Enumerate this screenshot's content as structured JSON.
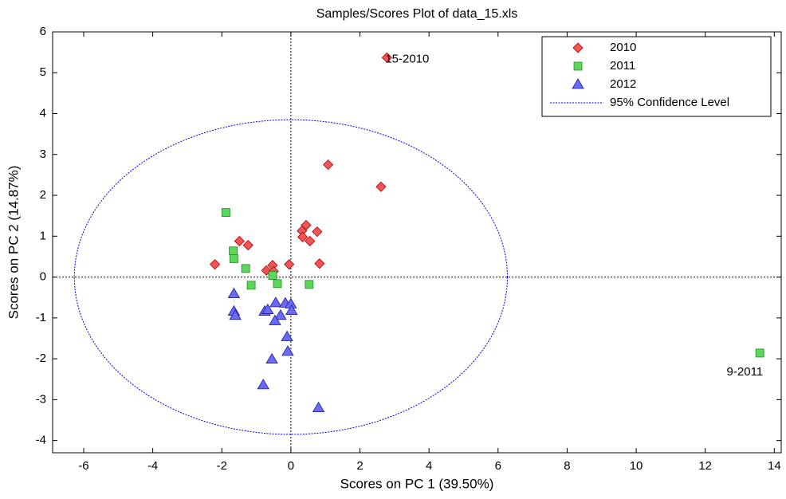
{
  "chart_data": {
    "type": "scatter",
    "title": "Samples/Scores Plot of data_15.xls",
    "x_label": "Scores on PC 1 (39.50%)",
    "y_label": "Scores on PC 2 (14.87%)",
    "xlim": [
      -6.9,
      14.2
    ],
    "ylim": [
      -4.3,
      6
    ],
    "xticks": [
      -6,
      -4,
      -2,
      0,
      2,
      4,
      6,
      8,
      10,
      12,
      14
    ],
    "yticks": [
      -4,
      -3,
      -2,
      -1,
      0,
      1,
      2,
      3,
      4,
      5,
      6
    ],
    "zero_lines": true,
    "legend": "upper right",
    "series": [
      {
        "name": "2010",
        "color": "#f25555",
        "marker": "diamond",
        "x": [
          2.78,
          1.08,
          2.61,
          0.44,
          0.32,
          0.34,
          0.55,
          0.76,
          0.83,
          -1.49,
          -1.24,
          -2.2,
          -0.53,
          -0.71,
          -0.5,
          -0.05
        ],
        "y": [
          5.37,
          2.75,
          2.21,
          1.27,
          1.13,
          0.98,
          0.88,
          1.11,
          0.33,
          0.88,
          0.78,
          0.31,
          0.29,
          0.16,
          0.14,
          0.31
        ]
      },
      {
        "name": "2011",
        "color": "#5cd65c",
        "marker": "square",
        "x": [
          -1.88,
          -1.67,
          -1.65,
          -1.31,
          -1.15,
          -0.53,
          -0.39,
          0.53,
          13.58
        ],
        "y": [
          1.58,
          0.64,
          0.45,
          0.21,
          -0.2,
          0.04,
          -0.16,
          -0.18,
          -1.86
        ]
      },
      {
        "name": "2012",
        "color": "#6a6af2",
        "marker": "triangle",
        "x": [
          -1.65,
          -1.65,
          -1.61,
          -0.76,
          -0.67,
          -0.44,
          -0.16,
          0,
          0.02,
          -0.3,
          -0.46,
          -0.11,
          -0.09,
          -0.55,
          -0.8,
          0.8
        ],
        "y": [
          -0.41,
          -0.84,
          -0.94,
          -0.84,
          -0.8,
          -0.63,
          -0.64,
          -0.66,
          -0.82,
          -0.94,
          -1.07,
          -1.46,
          -1.82,
          -2.01,
          -2.64,
          -3.2
        ]
      }
    ],
    "confidence_ellipse": {
      "name": "95% Confidence Level",
      "color": "#0000ee",
      "center": [
        0,
        0
      ],
      "rx": 6.27,
      "ry": 3.85
    },
    "annotations": [
      {
        "text": "15-2010",
        "x": 2.78,
        "y": 5.37
      },
      {
        "text": "9-2011",
        "x": 13.58,
        "y": -1.86
      }
    ]
  }
}
